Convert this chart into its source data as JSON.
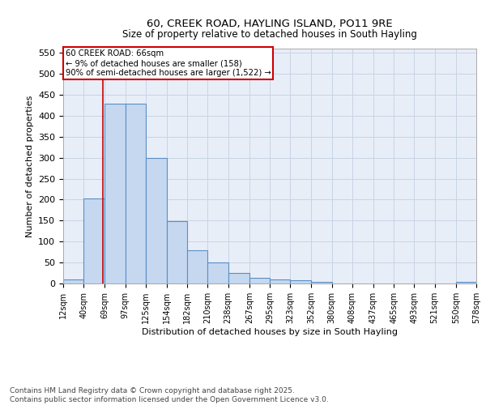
{
  "title": "60, CREEK ROAD, HAYLING ISLAND, PO11 9RE",
  "subtitle": "Size of property relative to detached houses in South Hayling",
  "xlabel": "Distribution of detached houses by size in South Hayling",
  "ylabel": "Number of detached properties",
  "bar_values": [
    10,
    203,
    428,
    428,
    300,
    148,
    80,
    50,
    25,
    13,
    10,
    8,
    3,
    0,
    0,
    0,
    0,
    0,
    0,
    4
  ],
  "bin_labels": [
    "12sqm",
    "40sqm",
    "69sqm",
    "97sqm",
    "125sqm",
    "154sqm",
    "182sqm",
    "210sqm",
    "238sqm",
    "267sqm",
    "295sqm",
    "323sqm",
    "352sqm",
    "380sqm",
    "408sqm",
    "437sqm",
    "465sqm",
    "493sqm",
    "521sqm",
    "550sqm",
    "578sqm"
  ],
  "bar_color": "#c5d8f0",
  "bar_edge_color": "#5b8ec4",
  "grid_color": "#c8d4e4",
  "bg_color": "#e8eef8",
  "vline_x": 66,
  "vline_color": "#cc0000",
  "annotation_text": "60 CREEK ROAD: 66sqm\n← 9% of detached houses are smaller (158)\n90% of semi-detached houses are larger (1,522) →",
  "annotation_box_color": "#cc0000",
  "ylim": [
    0,
    560
  ],
  "yticks": [
    0,
    50,
    100,
    150,
    200,
    250,
    300,
    350,
    400,
    450,
    500,
    550
  ],
  "bin_edges": [
    12,
    40,
    69,
    97,
    125,
    154,
    182,
    210,
    238,
    267,
    295,
    323,
    352,
    380,
    408,
    437,
    465,
    493,
    521,
    550,
    578
  ],
  "footer_line1": "Contains HM Land Registry data © Crown copyright and database right 2025.",
  "footer_line2": "Contains public sector information licensed under the Open Government Licence v3.0."
}
